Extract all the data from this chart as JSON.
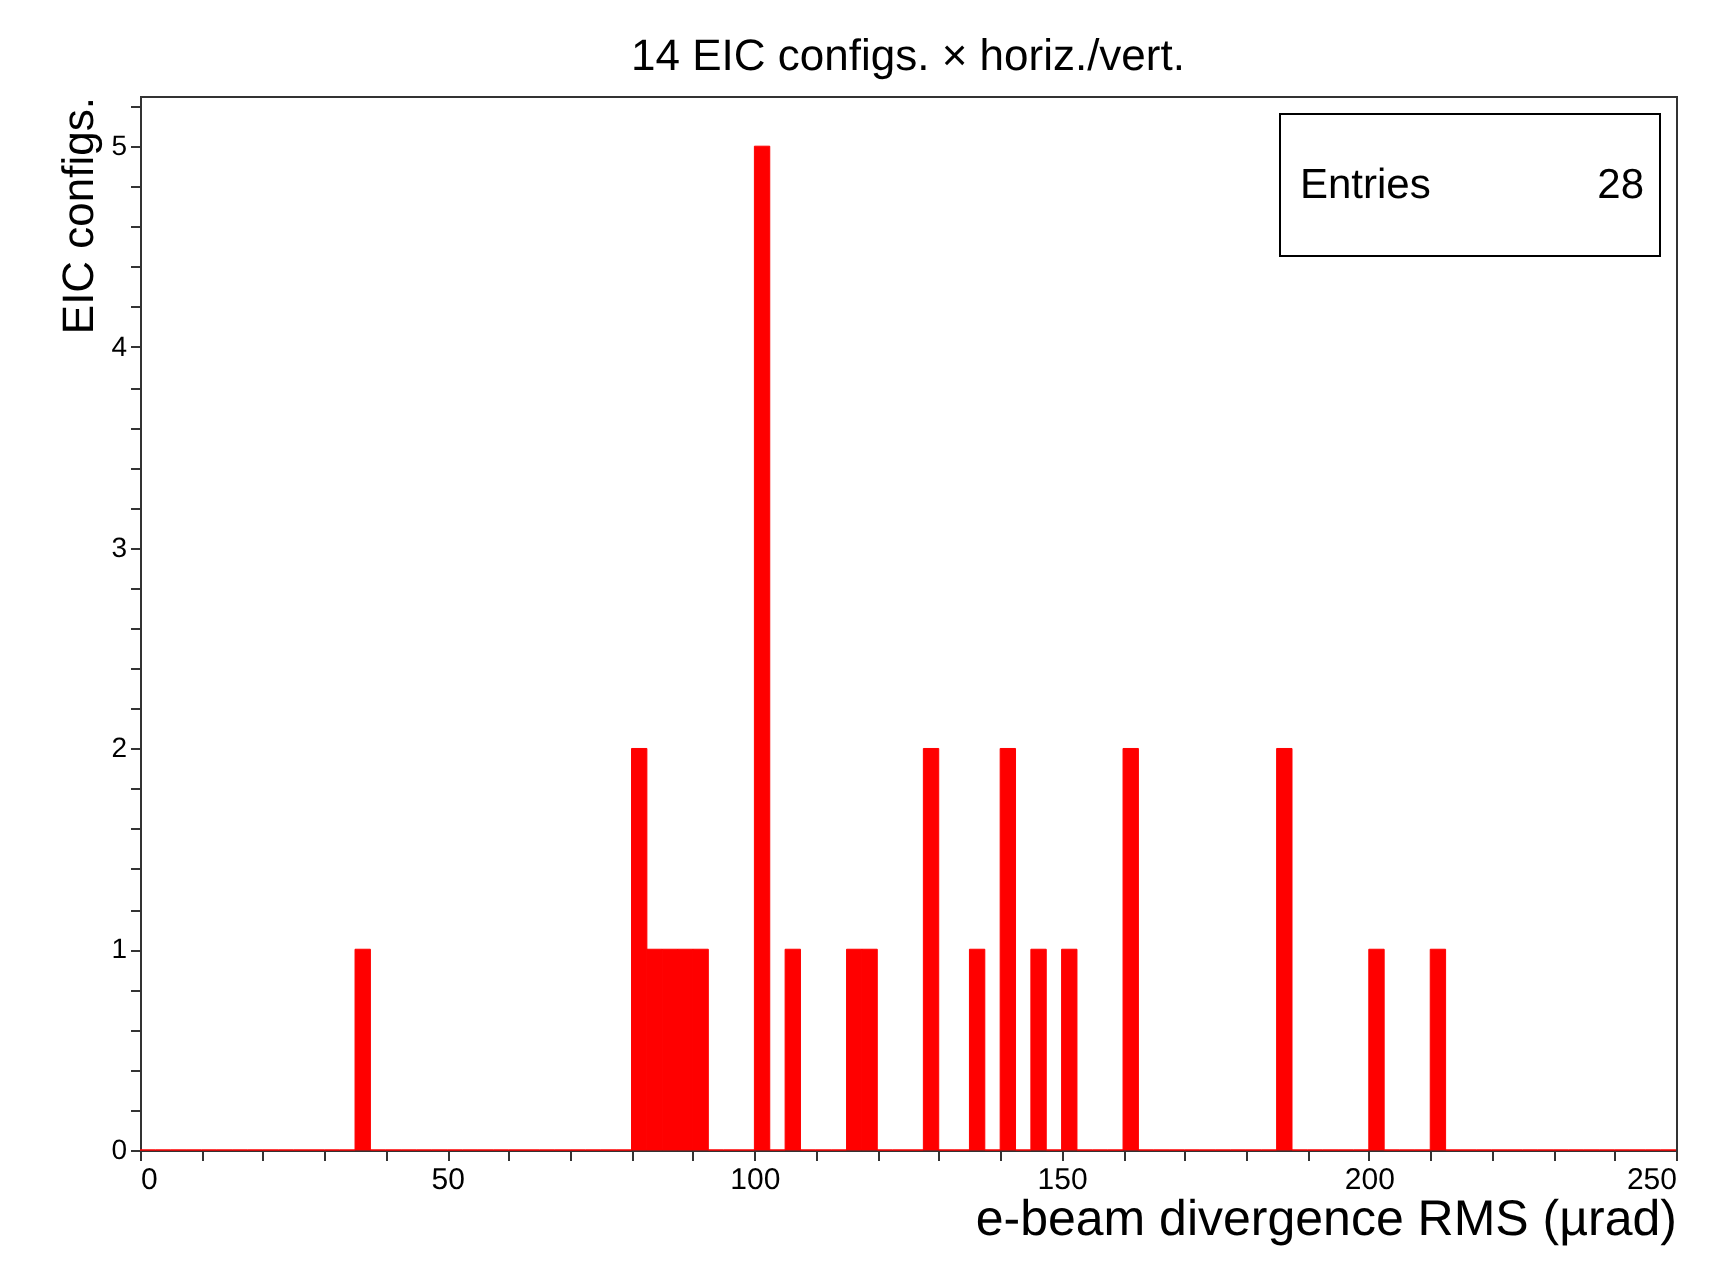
{
  "chart_data": {
    "type": "histogram",
    "title": "14 EIC configs. × horiz./vert.",
    "xlabel": "e-beam divergence RMS (µrad)",
    "ylabel": "EIC configs.",
    "color": "#ff0000",
    "bins": [
      0,
      2.5,
      5,
      7.5,
      10,
      12.5,
      15,
      17.5,
      20,
      22.5,
      25,
      27.5,
      30,
      32.5,
      35,
      37.5,
      40,
      42.5,
      45,
      47.5,
      50,
      52.5,
      55,
      57.5,
      60,
      62.5,
      65,
      67.5,
      70,
      72.5,
      75,
      77.5,
      80,
      82.5,
      85,
      87.5,
      90,
      92.5,
      95,
      97.5,
      100,
      102.5,
      105,
      107.5,
      110,
      112.5,
      115,
      117.5,
      120,
      122.5,
      125,
      127.5,
      130,
      132.5,
      135,
      137.5,
      140,
      142.5,
      145,
      147.5,
      150,
      152.5,
      155,
      157.5,
      160,
      162.5,
      165,
      167.5,
      170,
      172.5,
      175,
      177.5,
      180,
      182.5,
      185,
      187.5,
      190,
      192.5,
      195,
      197.5,
      200,
      202.5,
      205,
      207.5,
      210,
      212.5,
      215,
      217.5,
      220,
      222.5,
      225,
      227.5,
      230,
      232.5,
      235,
      237.5,
      240,
      242.5,
      245,
      247.5,
      250
    ],
    "values": [
      0,
      0,
      0,
      0,
      0,
      0,
      0,
      0,
      0,
      0,
      0,
      0,
      0,
      0,
      1,
      0,
      0,
      0,
      0,
      0,
      0,
      0,
      0,
      0,
      0,
      0,
      0,
      0,
      0,
      0,
      0,
      0,
      2,
      1,
      1,
      1,
      1,
      0,
      0,
      0,
      5,
      0,
      1,
      0,
      0,
      0,
      1,
      1,
      0,
      0,
      0,
      2,
      0,
      0,
      1,
      0,
      2,
      0,
      1,
      0,
      1,
      0,
      0,
      0,
      2,
      0,
      0,
      0,
      0,
      0,
      0,
      0,
      0,
      0,
      2,
      0,
      0,
      0,
      0,
      0,
      1,
      0,
      0,
      0,
      1,
      0,
      0,
      0,
      0,
      0,
      0,
      0,
      0,
      0,
      0,
      0,
      0,
      0,
      0,
      0
    ],
    "xlim": [
      0,
      250
    ],
    "xticks": [
      0,
      {
        "value": 10,
        "label": null
      },
      {
        "value": 20,
        "label": null
      },
      {
        "value": 30,
        "label": null
      },
      {
        "value": 40,
        "label": null
      },
      50,
      {
        "value": 60,
        "label": null
      },
      {
        "value": 70,
        "label": null
      },
      {
        "value": 80,
        "label": null
      },
      {
        "value": 90,
        "label": null
      },
      100,
      {
        "value": 110,
        "label": null
      },
      {
        "value": 120,
        "label": null
      },
      {
        "value": 130,
        "label": null
      },
      {
        "value": 140,
        "label": null
      },
      150,
      {
        "value": 160,
        "label": null
      },
      {
        "value": 170,
        "label": null
      },
      {
        "value": 180,
        "label": null
      },
      {
        "value": 190,
        "label": null
      },
      200,
      {
        "value": 210,
        "label": null
      },
      {
        "value": 220,
        "label": null
      },
      {
        "value": 230,
        "label": null
      },
      {
        "value": 240,
        "label": null
      },
      250
    ],
    "ylim": [
      0,
      5.25
    ],
    "yticks": [
      0,
      {
        "value": 0.2,
        "label": null
      },
      {
        "value": 0.4,
        "label": null
      },
      {
        "value": 0.6,
        "label": null
      },
      {
        "value": 0.8,
        "label": null
      },
      1,
      {
        "value": 1.2,
        "label": null
      },
      {
        "value": 1.4,
        "label": null
      },
      {
        "value": 1.6,
        "label": null
      },
      {
        "value": 1.8,
        "label": null
      },
      2,
      {
        "value": 2.2,
        "label": null
      },
      {
        "value": 2.4,
        "label": null
      },
      {
        "value": 2.6,
        "label": null
      },
      {
        "value": 2.8,
        "label": null
      },
      3,
      {
        "value": 3.2,
        "label": null
      },
      {
        "value": 3.4,
        "label": null
      },
      {
        "value": 3.6,
        "label": null
      },
      {
        "value": 3.8,
        "label": null
      },
      4,
      {
        "value": 4.2,
        "label": null
      },
      {
        "value": 4.4,
        "label": null
      },
      {
        "value": 4.6,
        "label": null
      },
      {
        "value": 4.8,
        "label": null
      },
      5,
      {
        "value": 5.2,
        "label": null
      }
    ],
    "annotations": [
      "Entries",
      "28"
    ]
  }
}
